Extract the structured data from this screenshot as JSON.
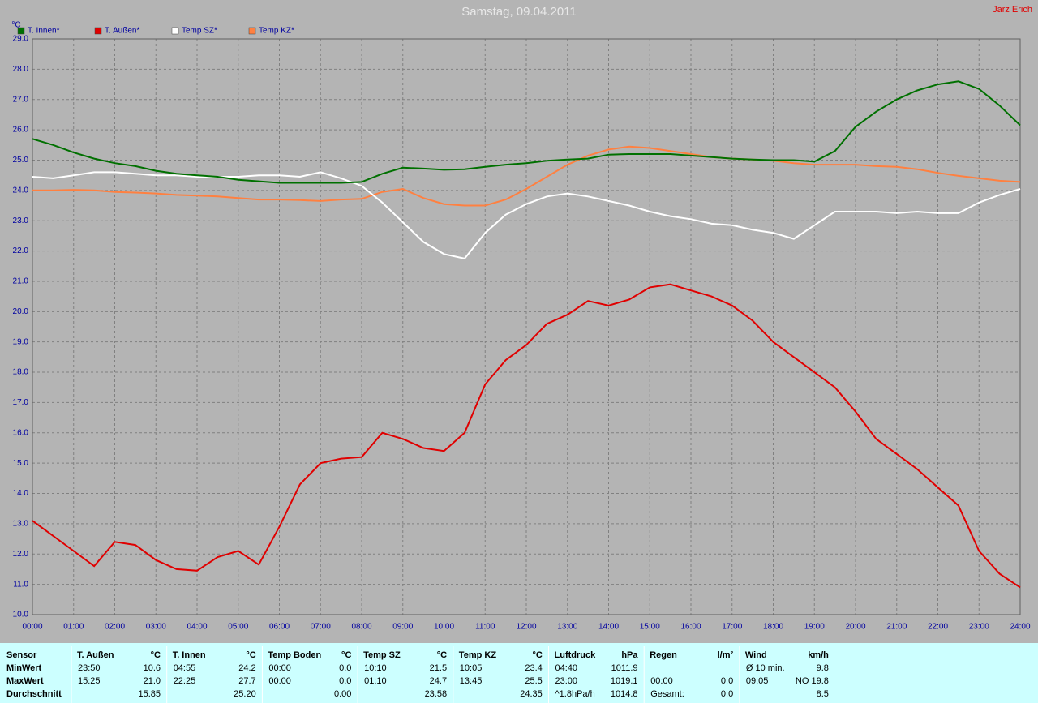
{
  "chart_data": {
    "type": "line",
    "title": "Samstag, 09.04.2011",
    "author": "Jarz Erich",
    "y_unit": "°C",
    "x": [
      0,
      0.5,
      1,
      1.5,
      2,
      2.5,
      3,
      3.5,
      4,
      4.5,
      5,
      5.5,
      6,
      6.5,
      7,
      7.5,
      8,
      8.5,
      9,
      9.5,
      10,
      10.5,
      11,
      11.5,
      12,
      12.5,
      13,
      13.5,
      14,
      14.5,
      15,
      15.5,
      16,
      16.5,
      17,
      17.5,
      18,
      18.5,
      19,
      19.5,
      20,
      20.5,
      21,
      21.5,
      22,
      22.5,
      23,
      23.5,
      24
    ],
    "series": [
      {
        "name": "T. Innen*",
        "color": "#007000",
        "values": [
          25.7,
          25.5,
          25.25,
          25.05,
          24.9,
          24.8,
          24.65,
          24.55,
          24.5,
          24.45,
          24.35,
          24.3,
          24.25,
          24.25,
          24.25,
          24.25,
          24.28,
          24.55,
          24.75,
          24.72,
          24.68,
          24.7,
          24.78,
          24.85,
          24.9,
          24.98,
          25.02,
          25.05,
          25.18,
          25.2,
          25.2,
          25.2,
          25.15,
          25.1,
          25.05,
          25.02,
          25.0,
          25.0,
          24.95,
          25.3,
          26.1,
          26.6,
          27.0,
          27.3,
          27.5,
          27.6,
          27.35,
          26.8,
          26.15
        ]
      },
      {
        "name": "T. Außen*",
        "color": "#e00000",
        "values": [
          13.1,
          12.6,
          12.1,
          11.6,
          12.4,
          12.3,
          11.8,
          11.5,
          11.45,
          11.9,
          12.1,
          11.65,
          12.9,
          14.3,
          15.0,
          15.15,
          15.2,
          16.0,
          15.8,
          15.5,
          15.4,
          16.0,
          17.6,
          18.4,
          18.9,
          19.6,
          19.9,
          20.35,
          20.2,
          20.4,
          20.8,
          20.9,
          20.7,
          20.5,
          20.2,
          19.7,
          19.0,
          18.5,
          18.0,
          17.5,
          16.7,
          15.8,
          15.3,
          14.8,
          14.2,
          13.6,
          12.1,
          11.35,
          10.9
        ]
      },
      {
        "name": "Temp SZ*",
        "color": "#ffffff",
        "values": [
          24.45,
          24.4,
          24.5,
          24.6,
          24.6,
          24.55,
          24.5,
          24.5,
          24.45,
          24.45,
          24.45,
          24.5,
          24.5,
          24.45,
          24.6,
          24.4,
          24.15,
          23.6,
          22.95,
          22.3,
          21.9,
          21.75,
          22.6,
          23.2,
          23.55,
          23.8,
          23.9,
          23.8,
          23.65,
          23.5,
          23.3,
          23.15,
          23.05,
          22.9,
          22.85,
          22.7,
          22.6,
          22.4,
          22.85,
          23.3,
          23.3,
          23.3,
          23.25,
          23.3,
          23.25,
          23.25,
          23.6,
          23.85,
          24.05
        ]
      },
      {
        "name": "Temp KZ*",
        "color": "#ff8040",
        "values": [
          24.0,
          24.0,
          24.02,
          24.0,
          23.95,
          23.93,
          23.9,
          23.85,
          23.83,
          23.8,
          23.75,
          23.7,
          23.7,
          23.68,
          23.65,
          23.7,
          23.72,
          23.95,
          24.05,
          23.75,
          23.55,
          23.5,
          23.5,
          23.7,
          24.05,
          24.45,
          24.85,
          25.15,
          25.35,
          25.45,
          25.4,
          25.3,
          25.2,
          25.1,
          25.05,
          25.02,
          24.98,
          24.9,
          24.85,
          24.85,
          24.85,
          24.8,
          24.78,
          24.7,
          24.58,
          24.48,
          24.4,
          24.32,
          24.28
        ]
      }
    ],
    "xlim": [
      0,
      24
    ],
    "xticks": [
      {
        "value": 0,
        "label": "00:00"
      },
      {
        "value": 1,
        "label": "01:00"
      },
      {
        "value": 2,
        "label": "02:00"
      },
      {
        "value": 3,
        "label": "03:00"
      },
      {
        "value": 4,
        "label": "04:00"
      },
      {
        "value": 5,
        "label": "05:00"
      },
      {
        "value": 6,
        "label": "06:00"
      },
      {
        "value": 7,
        "label": "07:00"
      },
      {
        "value": 8,
        "label": "08:00"
      },
      {
        "value": 9,
        "label": "09:00"
      },
      {
        "value": 10,
        "label": "10:00"
      },
      {
        "value": 11,
        "label": "11:00"
      },
      {
        "value": 12,
        "label": "12:00"
      },
      {
        "value": 13,
        "label": "13:00"
      },
      {
        "value": 14,
        "label": "14:00"
      },
      {
        "value": 15,
        "label": "15:00"
      },
      {
        "value": 16,
        "label": "16:00"
      },
      {
        "value": 17,
        "label": "17:00"
      },
      {
        "value": 18,
        "label": "18:00"
      },
      {
        "value": 19,
        "label": "19:00"
      },
      {
        "value": 20,
        "label": "20:00"
      },
      {
        "value": 21,
        "label": "21:00"
      },
      {
        "value": 22,
        "label": "22:00"
      },
      {
        "value": 23,
        "label": "23:00"
      },
      {
        "value": 24,
        "label": "24:00"
      }
    ],
    "ylim": [
      10,
      29
    ],
    "yticks": [
      {
        "value": 10,
        "label": "10.0"
      },
      {
        "value": 11,
        "label": "11.0"
      },
      {
        "value": 12,
        "label": "12.0"
      },
      {
        "value": 13,
        "label": "13.0"
      },
      {
        "value": 14,
        "label": "14.0"
      },
      {
        "value": 15,
        "label": "15.0"
      },
      {
        "value": 16,
        "label": "16.0"
      },
      {
        "value": 17,
        "label": "17.0"
      },
      {
        "value": 18,
        "label": "18.0"
      },
      {
        "value": 19,
        "label": "19.0"
      },
      {
        "value": 20,
        "label": "20.0"
      },
      {
        "value": 21,
        "label": "21.0"
      },
      {
        "value": 22,
        "label": "22.0"
      },
      {
        "value": 23,
        "label": "23.0"
      },
      {
        "value": 24,
        "label": "24.0"
      },
      {
        "value": 25,
        "label": "25.0"
      },
      {
        "value": 26,
        "label": "26.0"
      },
      {
        "value": 27,
        "label": "27.0"
      },
      {
        "value": 28,
        "label": "28.0"
      },
      {
        "value": 29,
        "label": "29.0"
      }
    ],
    "grid": true
  },
  "stats": {
    "row_labels": [
      "Sensor",
      "MinWert",
      "MaxWert",
      "Durchschnitt"
    ],
    "groups": [
      {
        "name": "T. Außen",
        "unit": "°C",
        "rows": [
          [
            "23:50",
            "10.6"
          ],
          [
            "15:25",
            "21.0"
          ],
          [
            null,
            "15.85"
          ]
        ]
      },
      {
        "name": "T. Innen",
        "unit": "°C",
        "rows": [
          [
            "04:55",
            "24.2"
          ],
          [
            "22:25",
            "27.7"
          ],
          [
            null,
            "25.20"
          ]
        ]
      },
      {
        "name": "Temp Boden",
        "unit": "°C",
        "rows": [
          [
            "00:00",
            "0.0"
          ],
          [
            "00:00",
            "0.0"
          ],
          [
            null,
            "0.00"
          ]
        ]
      },
      {
        "name": "Temp SZ",
        "unit": "°C",
        "rows": [
          [
            "10:10",
            "21.5"
          ],
          [
            "01:10",
            "24.7"
          ],
          [
            null,
            "23.58"
          ]
        ]
      },
      {
        "name": "Temp KZ",
        "unit": "°C",
        "rows": [
          [
            "10:05",
            "23.4"
          ],
          [
            "13:45",
            "25.5"
          ],
          [
            null,
            "24.35"
          ]
        ]
      },
      {
        "name": "Luftdruck",
        "unit": "hPa",
        "rows": [
          [
            "04:40",
            "1011.9"
          ],
          [
            "23:00",
            "1019.1"
          ],
          [
            "^1.8hPa/h",
            "1014.8"
          ]
        ]
      },
      {
        "name": "Regen",
        "unit": "l/m²",
        "rows": [
          [
            null,
            null
          ],
          [
            "00:00",
            "0.0"
          ],
          [
            "Gesamt:",
            "0.0"
          ]
        ]
      },
      {
        "name": "Wind",
        "unit": "km/h",
        "rows": [
          [
            "Ø 10 min.",
            "9.8"
          ],
          [
            "09:05",
            "NO 19.8"
          ],
          [
            null,
            "8.5"
          ]
        ]
      }
    ]
  }
}
